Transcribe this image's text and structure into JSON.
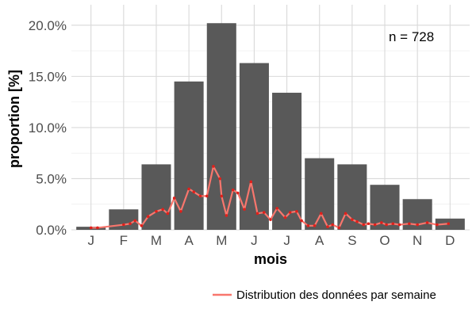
{
  "chart_data": {
    "type": "bar",
    "xlabel": "mois",
    "ylabel": "proportion [%]",
    "annotation": "n = 728",
    "ylim": [
      0,
      22
    ],
    "yticks": [
      0,
      5,
      10,
      15,
      20
    ],
    "ytick_labels": [
      "0.0%",
      "5.0%",
      "10.0%",
      "15.0%",
      "20.0%"
    ],
    "categories": [
      "J",
      "F",
      "M",
      "A",
      "M",
      "J",
      "J",
      "A",
      "S",
      "O",
      "N",
      "D"
    ],
    "values": [
      0.3,
      2.0,
      6.4,
      14.5,
      20.2,
      16.3,
      13.4,
      7.0,
      6.4,
      4.4,
      3.0,
      1.1
    ],
    "weekly_line": {
      "name": "Distribution des données par semaine",
      "x": [
        0.0,
        0.2,
        1.0,
        1.2,
        1.35,
        1.55,
        1.75,
        2.0,
        2.2,
        2.35,
        2.55,
        2.75,
        3.0,
        3.15,
        3.35,
        3.55,
        3.75,
        3.95,
        4.0,
        4.15,
        4.35,
        4.5,
        4.7,
        4.9,
        5.1,
        5.3,
        5.5,
        5.7,
        5.95,
        6.1,
        6.3,
        6.45,
        6.65,
        6.85,
        7.05,
        7.25,
        7.4,
        7.6,
        7.8,
        8.0,
        8.15,
        8.35,
        8.5,
        8.7,
        8.9,
        9.05,
        9.25,
        9.45,
        9.75,
        10.0,
        10.3,
        10.6,
        10.95
      ],
      "values": [
        0.2,
        0.2,
        0.5,
        0.6,
        0.9,
        0.4,
        1.3,
        1.8,
        2.0,
        1.6,
        3.1,
        1.8,
        4.0,
        3.7,
        3.3,
        3.3,
        6.2,
        5.0,
        3.3,
        1.4,
        3.9,
        3.6,
        2.0,
        4.7,
        1.6,
        1.7,
        1.0,
        2.1,
        1.2,
        1.7,
        1.8,
        0.9,
        0.4,
        0.4,
        1.6,
        0.3,
        0.5,
        0.2,
        1.6,
        1.0,
        0.8,
        0.5,
        0.6,
        0.5,
        0.7,
        0.5,
        0.6,
        0.5,
        0.6,
        0.5,
        0.7,
        0.5,
        0.6
      ],
      "color": "#f8766d"
    },
    "bar_color": "#595959",
    "grid": true,
    "legend_position": "bottom"
  }
}
